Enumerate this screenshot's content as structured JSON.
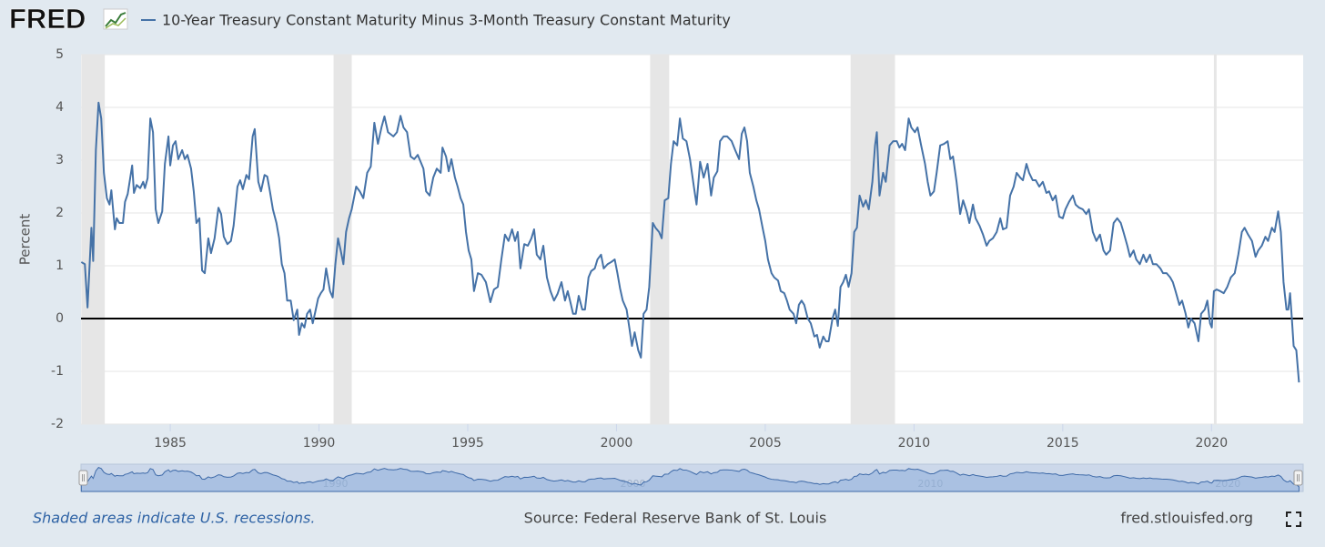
{
  "header": {
    "logo": "FRED"
  },
  "chart_data": {
    "type": "line",
    "y_label": "Percent",
    "xlim": [
      1982.0,
      2023.08
    ],
    "xticks": [
      1985,
      1990,
      1995,
      2000,
      2005,
      2010,
      2015,
      2020
    ],
    "ylim": [
      -2,
      5
    ],
    "yticks": [
      -2,
      -1,
      0,
      1,
      2,
      3,
      4,
      5
    ],
    "grid": true,
    "reference_line": 0,
    "recessions": [
      [
        1982.01,
        1982.8
      ],
      [
        1990.49,
        1991.1
      ],
      [
        2001.13,
        2001.77
      ],
      [
        2007.87,
        2009.36
      ],
      [
        2020.08,
        2020.17
      ]
    ],
    "navigator_ticks": [
      1990,
      2000,
      2010,
      2020
    ],
    "x": [
      1982.01,
      1982.13,
      1982.22,
      1982.35,
      1982.41,
      1982.5,
      1982.59,
      1982.68,
      1982.77,
      1982.87,
      1982.96,
      1983.02,
      1983.14,
      1983.2,
      1983.29,
      1983.41,
      1983.48,
      1983.57,
      1983.72,
      1983.78,
      1983.87,
      1983.99,
      1984.09,
      1984.15,
      1984.24,
      1984.33,
      1984.42,
      1984.51,
      1984.6,
      1984.73,
      1984.82,
      1984.94,
      1985.0,
      1985.09,
      1985.18,
      1985.27,
      1985.4,
      1985.49,
      1985.58,
      1985.7,
      1985.79,
      1985.88,
      1985.98,
      1986.07,
      1986.16,
      1986.28,
      1986.37,
      1986.49,
      1986.62,
      1986.71,
      1986.8,
      1986.92,
      1987.04,
      1987.13,
      1987.26,
      1987.35,
      1987.44,
      1987.56,
      1987.65,
      1987.77,
      1987.84,
      1987.96,
      1988.05,
      1988.17,
      1988.26,
      1988.35,
      1988.45,
      1988.57,
      1988.66,
      1988.75,
      1988.84,
      1988.93,
      1989.05,
      1989.15,
      1989.27,
      1989.33,
      1989.42,
      1989.51,
      1989.6,
      1989.7,
      1989.79,
      1989.88,
      1989.97,
      1990.06,
      1990.15,
      1990.24,
      1990.37,
      1990.46,
      1990.55,
      1990.64,
      1990.73,
      1990.82,
      1990.91,
      1991.01,
      1991.1,
      1991.25,
      1991.37,
      1991.49,
      1991.62,
      1991.74,
      1991.86,
      1991.98,
      1992.1,
      1992.2,
      1992.32,
      1992.5,
      1992.62,
      1992.74,
      1992.84,
      1992.96,
      1993.08,
      1993.2,
      1993.32,
      1993.51,
      1993.6,
      1993.72,
      1993.84,
      1993.96,
      1994.09,
      1994.15,
      1994.27,
      1994.36,
      1994.45,
      1994.57,
      1994.66,
      1994.76,
      1994.85,
      1994.94,
      1995.03,
      1995.12,
      1995.21,
      1995.34,
      1995.46,
      1995.61,
      1995.76,
      1995.88,
      1996.01,
      1996.13,
      1996.25,
      1996.37,
      1996.49,
      1996.59,
      1996.68,
      1996.77,
      1996.9,
      1997.02,
      1997.14,
      1997.23,
      1997.32,
      1997.44,
      1997.54,
      1997.66,
      1997.78,
      1997.9,
      1998.02,
      1998.15,
      1998.27,
      1998.36,
      1998.45,
      1998.54,
      1998.63,
      1998.73,
      1998.85,
      1998.94,
      1999.06,
      1999.15,
      1999.27,
      1999.36,
      1999.48,
      1999.57,
      1999.7,
      1999.82,
      1999.94,
      2000.03,
      2000.12,
      2000.21,
      2000.34,
      2000.43,
      2000.52,
      2000.61,
      2000.73,
      2000.82,
      2000.91,
      2001.01,
      2001.1,
      2001.22,
      2001.31,
      2001.43,
      2001.52,
      2001.62,
      2001.74,
      2001.83,
      2001.92,
      2002.04,
      2002.13,
      2002.23,
      2002.35,
      2002.47,
      2002.6,
      2002.69,
      2002.81,
      2002.93,
      2003.06,
      2003.18,
      2003.27,
      2003.39,
      2003.48,
      2003.6,
      2003.72,
      2003.87,
      2003.99,
      2004.12,
      2004.21,
      2004.3,
      2004.39,
      2004.48,
      2004.6,
      2004.7,
      2004.79,
      2004.91,
      2005.0,
      2005.09,
      2005.21,
      2005.3,
      2005.43,
      2005.52,
      2005.64,
      2005.73,
      2005.82,
      2005.95,
      2006.04,
      2006.13,
      2006.22,
      2006.31,
      2006.43,
      2006.53,
      2006.65,
      2006.74,
      2006.83,
      2006.95,
      2007.04,
      2007.13,
      2007.26,
      2007.35,
      2007.44,
      2007.53,
      2007.62,
      2007.71,
      2007.8,
      2007.9,
      2007.99,
      2008.08,
      2008.17,
      2008.29,
      2008.38,
      2008.48,
      2008.6,
      2008.69,
      2008.75,
      2008.84,
      2008.96,
      2009.05,
      2009.18,
      2009.3,
      2009.42,
      2009.51,
      2009.6,
      2009.7,
      2009.82,
      2009.91,
      2010.03,
      2010.12,
      2010.24,
      2010.37,
      2010.46,
      2010.55,
      2010.67,
      2010.76,
      2010.88,
      2011.01,
      2011.13,
      2011.22,
      2011.31,
      2011.43,
      2011.55,
      2011.65,
      2011.77,
      2011.86,
      2011.98,
      2012.07,
      2012.2,
      2012.32,
      2012.44,
      2012.53,
      2012.65,
      2012.78,
      2012.9,
      2012.99,
      2013.11,
      2013.23,
      2013.35,
      2013.45,
      2013.57,
      2013.66,
      2013.78,
      2013.87,
      2013.99,
      2014.09,
      2014.21,
      2014.33,
      2014.45,
      2014.54,
      2014.66,
      2014.76,
      2014.88,
      2015.0,
      2015.09,
      2015.21,
      2015.34,
      2015.43,
      2015.55,
      2015.67,
      2015.79,
      2015.88,
      2016.01,
      2016.13,
      2016.25,
      2016.37,
      2016.46,
      2016.59,
      2016.71,
      2016.83,
      2016.95,
      2017.04,
      2017.17,
      2017.26,
      2017.38,
      2017.47,
      2017.59,
      2017.71,
      2017.81,
      2017.93,
      2018.03,
      2018.15,
      2018.28,
      2018.37,
      2018.49,
      2018.61,
      2018.7,
      2018.79,
      2018.92,
      2019.01,
      2019.13,
      2019.22,
      2019.31,
      2019.43,
      2019.56,
      2019.65,
      2019.77,
      2019.86,
      2019.95,
      2020.01,
      2020.08,
      2020.17,
      2020.29,
      2020.41,
      2020.53,
      2020.65,
      2020.78,
      2020.9,
      2021.02,
      2021.11,
      2021.23,
      2021.36,
      2021.48,
      2021.57,
      2021.69,
      2021.81,
      2021.9,
      2022.03,
      2022.12,
      2022.24,
      2022.33,
      2022.42,
      2022.52,
      2022.58,
      2022.64,
      2022.7,
      2022.76,
      2022.85,
      2022.94
    ],
    "series": [
      {
        "name": "10-Year Treasury Constant Maturity Minus 3-Month Treasury Constant Maturity",
        "color": "#4572a7",
        "values": [
          1.07,
          1.03,
          0.21,
          1.72,
          1.09,
          3.19,
          4.09,
          3.79,
          2.76,
          2.28,
          2.16,
          2.43,
          1.69,
          1.9,
          1.81,
          1.81,
          2.21,
          2.36,
          2.9,
          2.38,
          2.53,
          2.47,
          2.59,
          2.47,
          2.66,
          3.79,
          3.53,
          2.07,
          1.81,
          2.03,
          2.93,
          3.45,
          2.9,
          3.28,
          3.36,
          3.02,
          3.19,
          3.02,
          3.1,
          2.84,
          2.41,
          1.81,
          1.9,
          0.91,
          0.86,
          1.52,
          1.24,
          1.52,
          2.1,
          1.98,
          1.55,
          1.41,
          1.47,
          1.76,
          2.5,
          2.62,
          2.45,
          2.72,
          2.64,
          3.45,
          3.59,
          2.59,
          2.41,
          2.72,
          2.69,
          2.41,
          2.07,
          1.81,
          1.52,
          1.03,
          0.86,
          0.34,
          0.34,
          -0.03,
          0.17,
          -0.31,
          -0.09,
          -0.17,
          0.09,
          0.17,
          -0.09,
          0.14,
          0.38,
          0.48,
          0.55,
          0.95,
          0.52,
          0.4,
          1.03,
          1.52,
          1.29,
          1.03,
          1.64,
          1.9,
          2.07,
          2.5,
          2.41,
          2.28,
          2.76,
          2.88,
          3.71,
          3.31,
          3.62,
          3.83,
          3.53,
          3.45,
          3.53,
          3.84,
          3.62,
          3.53,
          3.07,
          3.02,
          3.1,
          2.84,
          2.41,
          2.33,
          2.67,
          2.84,
          2.76,
          3.24,
          3.07,
          2.79,
          3.02,
          2.67,
          2.5,
          2.28,
          2.16,
          1.64,
          1.29,
          1.12,
          0.52,
          0.86,
          0.83,
          0.69,
          0.31,
          0.55,
          0.6,
          1.12,
          1.59,
          1.47,
          1.69,
          1.47,
          1.64,
          0.95,
          1.41,
          1.38,
          1.52,
          1.69,
          1.21,
          1.12,
          1.38,
          0.78,
          0.52,
          0.34,
          0.47,
          0.69,
          0.34,
          0.52,
          0.31,
          0.09,
          0.09,
          0.43,
          0.17,
          0.17,
          0.78,
          0.9,
          0.95,
          1.12,
          1.21,
          0.95,
          1.03,
          1.07,
          1.12,
          0.86,
          0.57,
          0.34,
          0.17,
          -0.17,
          -0.52,
          -0.26,
          -0.6,
          -0.74,
          0.09,
          0.17,
          0.6,
          1.81,
          1.72,
          1.64,
          1.52,
          2.24,
          2.28,
          2.93,
          3.36,
          3.28,
          3.79,
          3.41,
          3.36,
          3.02,
          2.5,
          2.16,
          2.97,
          2.67,
          2.93,
          2.33,
          2.67,
          2.79,
          3.36,
          3.45,
          3.45,
          3.36,
          3.19,
          3.02,
          3.5,
          3.62,
          3.36,
          2.76,
          2.5,
          2.24,
          2.07,
          1.72,
          1.47,
          1.12,
          0.86,
          0.78,
          0.72,
          0.52,
          0.48,
          0.34,
          0.17,
          0.09,
          -0.09,
          0.26,
          0.34,
          0.26,
          0,
          -0.09,
          -0.34,
          -0.31,
          -0.55,
          -0.34,
          -0.43,
          -0.43,
          0,
          0.17,
          -0.14,
          0.6,
          0.69,
          0.83,
          0.6,
          0.86,
          1.64,
          1.72,
          2.33,
          2.12,
          2.24,
          2.07,
          2.59,
          3.28,
          3.53,
          2.33,
          2.76,
          2.59,
          3.28,
          3.36,
          3.36,
          3.24,
          3.31,
          3.19,
          3.79,
          3.62,
          3.53,
          3.62,
          3.28,
          2.93,
          2.59,
          2.33,
          2.41,
          2.76,
          3.28,
          3.31,
          3.36,
          3.02,
          3.07,
          2.59,
          1.98,
          2.24,
          2.03,
          1.81,
          2.16,
          1.9,
          1.76,
          1.59,
          1.38,
          1.47,
          1.52,
          1.64,
          1.9,
          1.69,
          1.72,
          2.33,
          2.5,
          2.76,
          2.67,
          2.62,
          2.93,
          2.76,
          2.62,
          2.62,
          2.5,
          2.59,
          2.38,
          2.41,
          2.24,
          2.33,
          1.93,
          1.9,
          2.07,
          2.21,
          2.33,
          2.16,
          2.1,
          2.07,
          1.98,
          2.07,
          1.64,
          1.47,
          1.59,
          1.29,
          1.21,
          1.29,
          1.81,
          1.9,
          1.81,
          1.64,
          1.38,
          1.17,
          1.29,
          1.12,
          1.03,
          1.21,
          1.07,
          1.21,
          1.03,
          1.03,
          0.95,
          0.86,
          0.86,
          0.78,
          0.69,
          0.52,
          0.26,
          0.34,
          0.09,
          -0.17,
          0,
          -0.09,
          -0.43,
          0.09,
          0.17,
          0.34,
          -0.09,
          -0.17,
          0.52,
          0.55,
          0.52,
          0.48,
          0.6,
          0.78,
          0.86,
          1.21,
          1.64,
          1.72,
          1.59,
          1.47,
          1.17,
          1.29,
          1.38,
          1.55,
          1.47,
          1.72,
          1.64,
          2.03,
          1.64,
          0.69,
          0.17,
          0.17,
          0.48,
          0,
          -0.52,
          -0.6,
          -1.21
        ]
      }
    ]
  },
  "footer": {
    "note": "Shaded areas indicate U.S. recessions.",
    "source": "Source: Federal Reserve Bank of St. Louis",
    "site": "fred.stlouisfed.org"
  }
}
